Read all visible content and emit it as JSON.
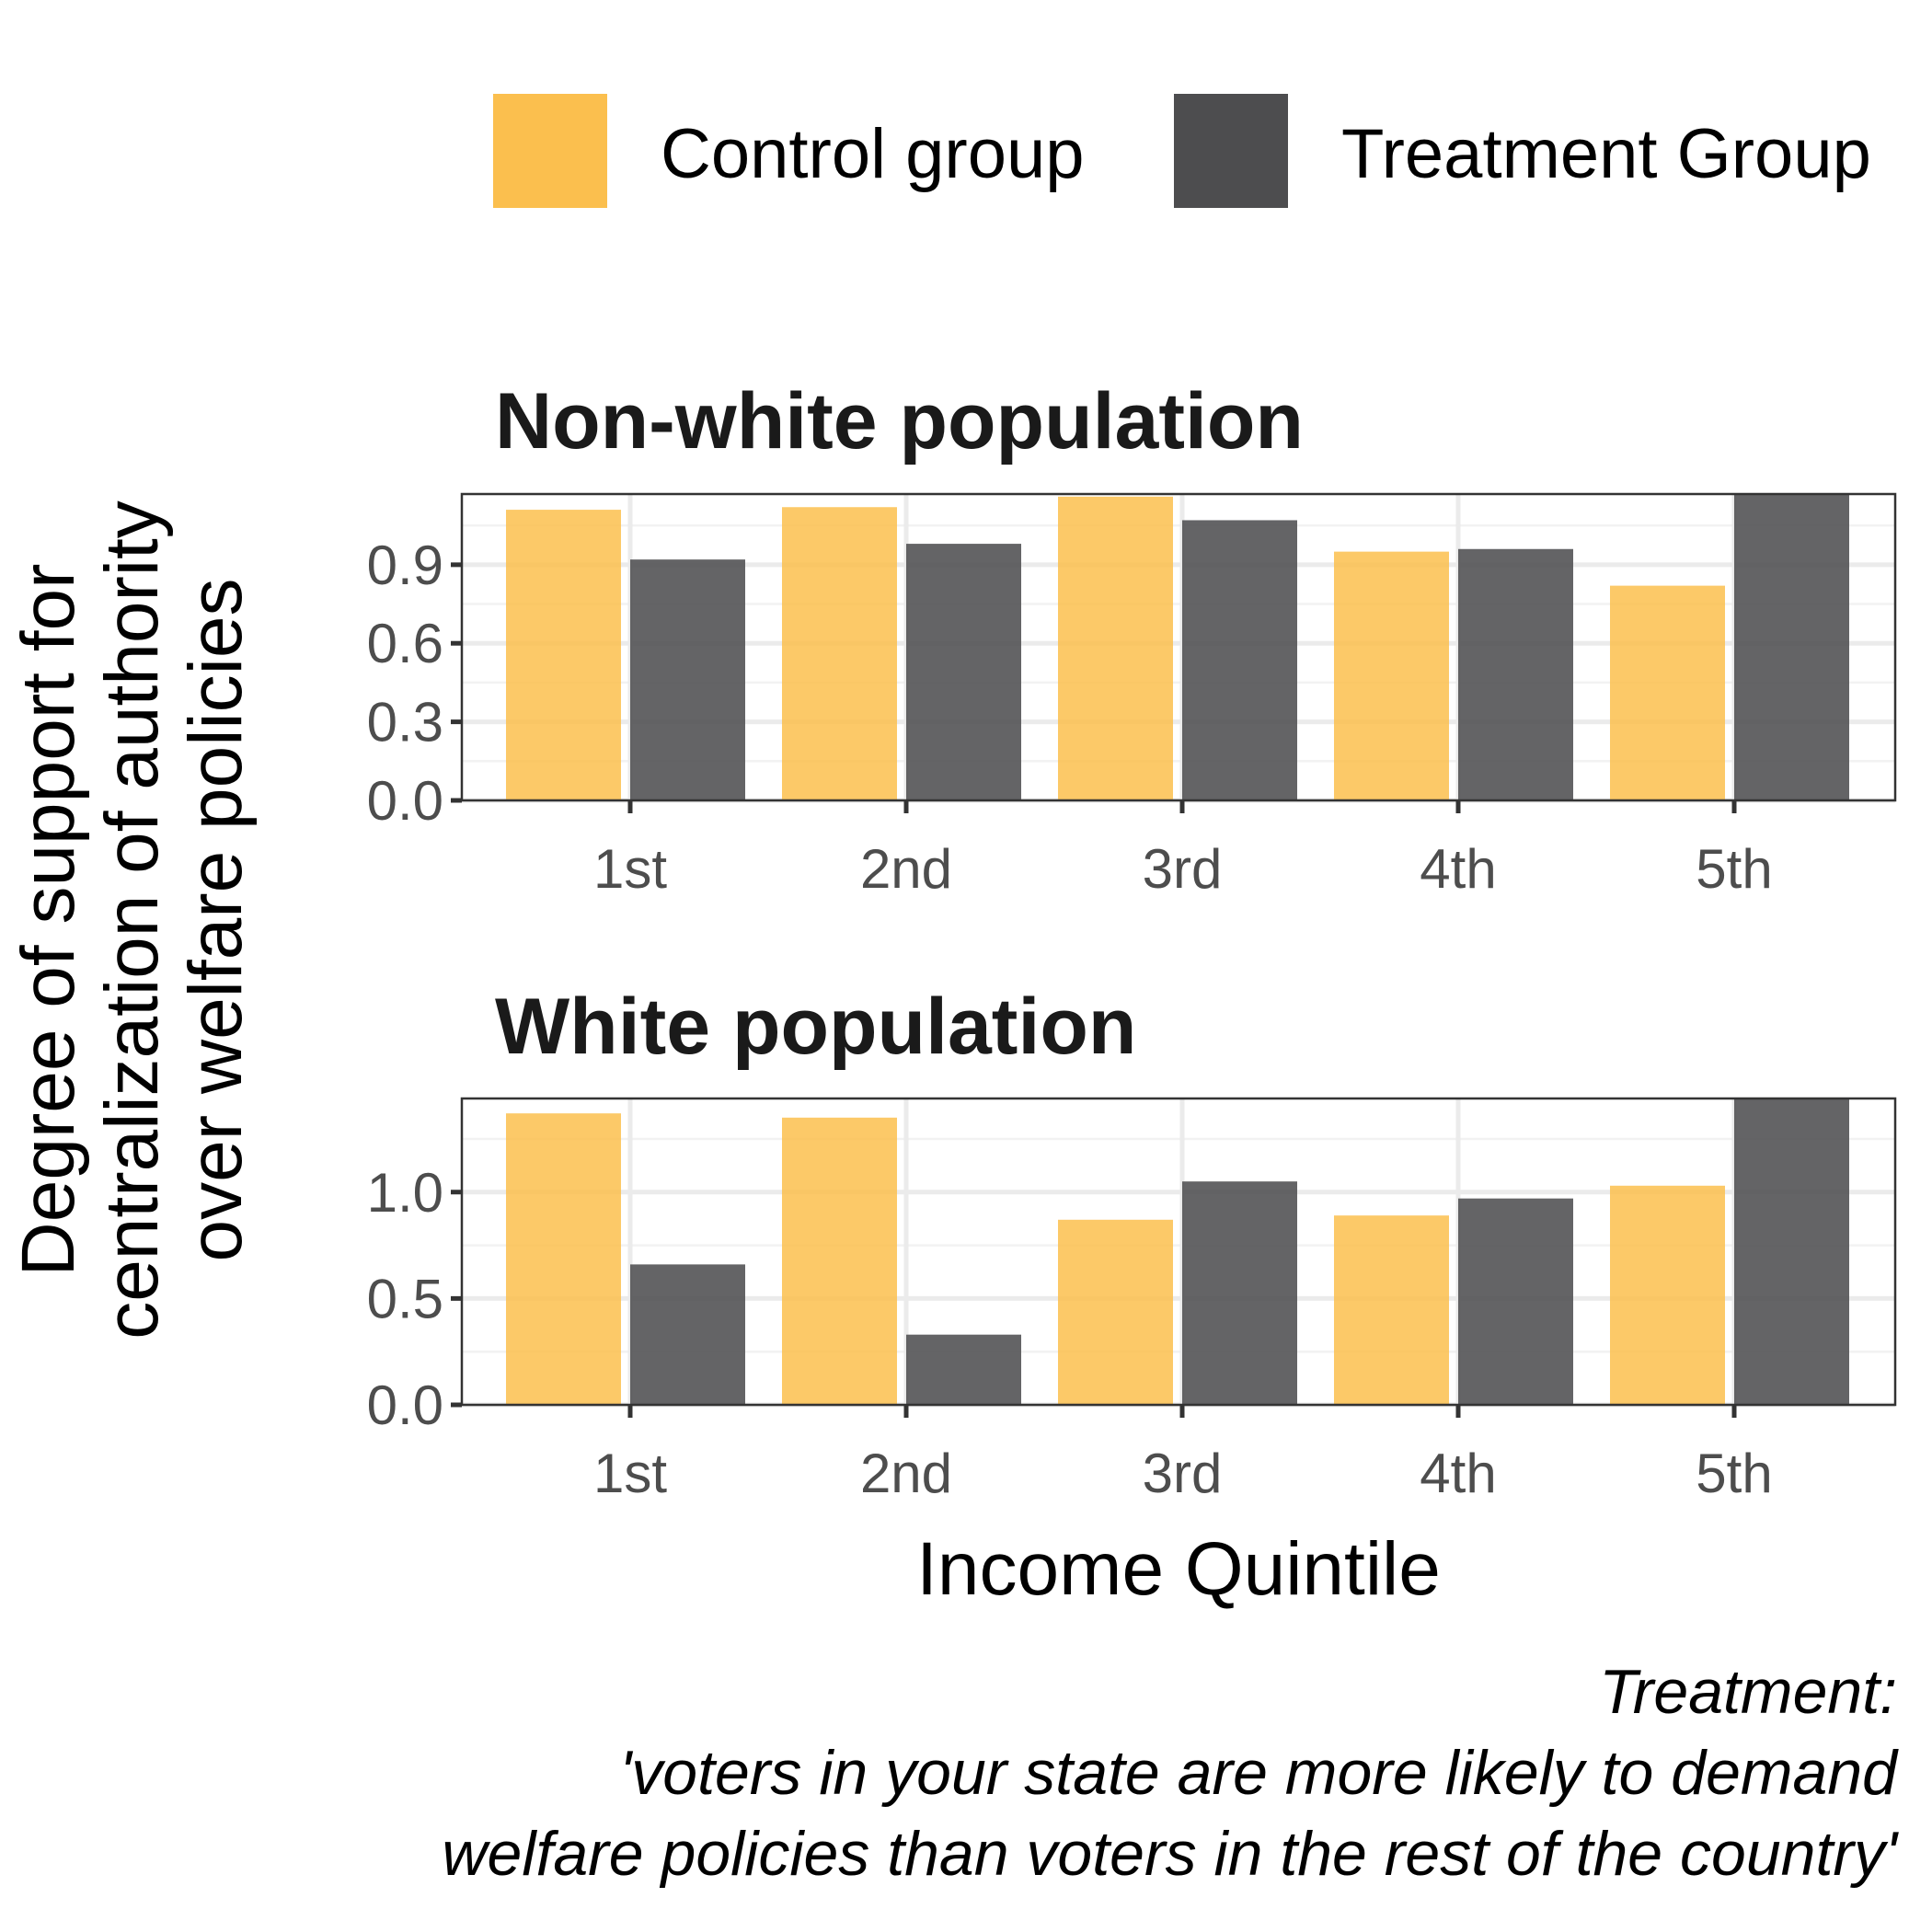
{
  "chart_data": {
    "type": "bar",
    "legend": {
      "position": "top",
      "entries": [
        {
          "label": "Control group",
          "color": "#fbbf4e"
        },
        {
          "label": "Treatment Group",
          "color": "#4d4d4f"
        }
      ]
    },
    "ylabel_lines": [
      "Degree of support for",
      "centralization of authority",
      "over welfare policies"
    ],
    "xlabel": "Income Quintile",
    "caption_lines": [
      "Treatment:",
      "'voters in your state are more likely to demand ",
      "welfare policies than voters in the rest of the country'"
    ],
    "grid": true,
    "panels": [
      {
        "title": "Non-white population",
        "categories": [
          "1st",
          "2nd",
          "3rd",
          "4th",
          "5th"
        ],
        "ylim": [
          0,
          1.17
        ],
        "yticks": [
          0.0,
          0.3,
          0.6,
          0.9
        ],
        "ytick_labels": [
          "0.0",
          "0.3",
          "0.6",
          "0.9"
        ],
        "series": [
          {
            "name": "Control group",
            "values": [
              1.11,
              1.12,
              1.16,
              0.95,
              0.82
            ]
          },
          {
            "name": "Treatment Group",
            "values": [
              0.92,
              0.98,
              1.07,
              0.96,
              1.17
            ]
          }
        ]
      },
      {
        "title": "White population",
        "categories": [
          "1st",
          "2nd",
          "3rd",
          "4th",
          "5th"
        ],
        "ylim": [
          0,
          1.44
        ],
        "yticks": [
          0.0,
          0.5,
          1.0
        ],
        "ytick_labels": [
          "0.0",
          "0.5",
          "1.0"
        ],
        "series": [
          {
            "name": "Control group",
            "values": [
              1.37,
              1.35,
              0.87,
              0.89,
              1.03
            ]
          },
          {
            "name": "Treatment Group",
            "values": [
              0.66,
              0.33,
              1.05,
              0.97,
              1.44
            ]
          }
        ]
      }
    ]
  }
}
